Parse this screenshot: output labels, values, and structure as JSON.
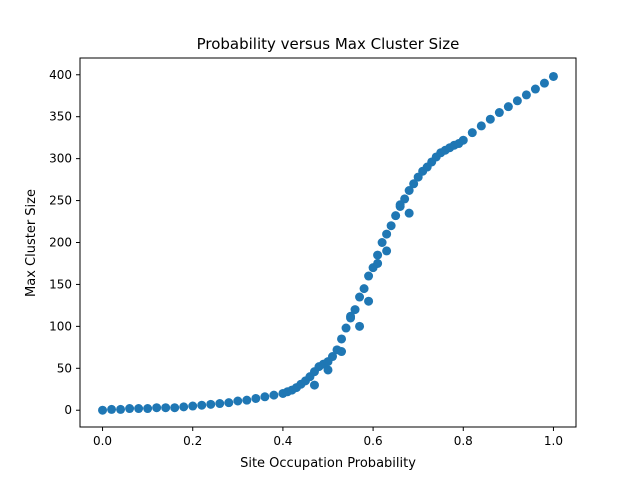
{
  "chart_data": {
    "type": "scatter",
    "title": "Probability versus Max Cluster Size",
    "xlabel": "Site Occupation Probability",
    "ylabel": "Max Cluster Size",
    "xlim": [
      -0.05,
      1.05
    ],
    "ylim": [
      -20,
      420
    ],
    "xticks": [
      0.0,
      0.2,
      0.4,
      0.6,
      0.8,
      1.0
    ],
    "xtick_labels": [
      "0.0",
      "0.2",
      "0.4",
      "0.6",
      "0.8",
      "1.0"
    ],
    "yticks": [
      0,
      50,
      100,
      150,
      200,
      250,
      300,
      350,
      400
    ],
    "ytick_labels": [
      "0",
      "50",
      "100",
      "150",
      "200",
      "250",
      "300",
      "350",
      "400"
    ],
    "grid": false,
    "color": "#1f77b4",
    "series": [
      {
        "x": [
          0.0,
          0.02,
          0.04,
          0.06,
          0.08,
          0.1,
          0.12,
          0.14,
          0.16,
          0.18,
          0.2,
          0.22,
          0.24,
          0.26,
          0.28,
          0.3,
          0.32,
          0.34,
          0.36,
          0.38,
          0.4,
          0.41,
          0.42,
          0.43,
          0.44,
          0.45,
          0.46,
          0.47,
          0.48,
          0.49,
          0.5,
          0.51,
          0.52,
          0.53,
          0.54,
          0.55,
          0.56,
          0.57,
          0.58,
          0.59,
          0.6,
          0.61,
          0.62,
          0.63,
          0.64,
          0.65,
          0.66,
          0.67,
          0.68,
          0.69,
          0.7,
          0.71,
          0.72,
          0.73,
          0.74,
          0.75,
          0.76,
          0.77,
          0.78,
          0.79,
          0.8,
          0.82,
          0.84,
          0.86,
          0.88,
          0.9,
          0.92,
          0.94,
          0.96,
          0.98,
          1.0,
          0.47,
          0.5,
          0.53,
          0.55,
          0.57,
          0.59,
          0.61,
          0.63,
          0.66,
          0.68
        ],
        "y": [
          0,
          1,
          1,
          2,
          2,
          2,
          3,
          3,
          3,
          4,
          5,
          6,
          7,
          8,
          9,
          11,
          12,
          14,
          16,
          18,
          20,
          22,
          24,
          27,
          31,
          35,
          40,
          46,
          52,
          55,
          58,
          64,
          72,
          85,
          98,
          110,
          120,
          135,
          145,
          160,
          170,
          185,
          200,
          210,
          220,
          232,
          243,
          252,
          262,
          270,
          278,
          285,
          290,
          296,
          302,
          307,
          310,
          313,
          316,
          318,
          322,
          331,
          339,
          347,
          355,
          362,
          369,
          376,
          383,
          390,
          398,
          30,
          48,
          70,
          112,
          100,
          130,
          175,
          190,
          245,
          235
        ]
      }
    ]
  }
}
